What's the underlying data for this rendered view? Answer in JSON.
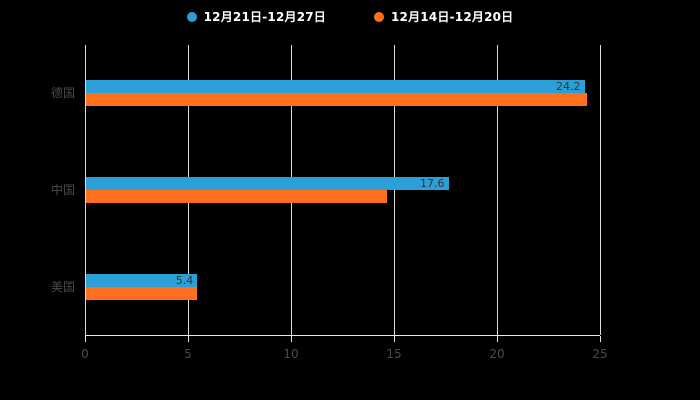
{
  "page": {
    "background": "#000000"
  },
  "legend": {
    "items": [
      {
        "label": "12月21日-12月27日",
        "color": "#2A9FD8"
      },
      {
        "label": "12月14日-12月20日",
        "color": "#FF6F1E"
      }
    ]
  },
  "chart_data": {
    "type": "bar",
    "orientation": "horizontal",
    "title": "",
    "categories": [
      "德国",
      "中国",
      "美国"
    ],
    "series": [
      {
        "name": "12月21日-12月27日",
        "color": "#2A9FD8",
        "values": [
          24.2,
          17.6,
          5.4
        ]
      },
      {
        "name": "12月14日-12月20日",
        "color": "#FF6F1E",
        "values": [
          24.3,
          14.6,
          5.4
        ]
      }
    ],
    "xlim": [
      0,
      25
    ],
    "xticks": [
      0,
      5,
      10,
      15,
      20,
      25
    ],
    "grid": true,
    "legend_position": "top",
    "value_label_color": "#333333"
  }
}
